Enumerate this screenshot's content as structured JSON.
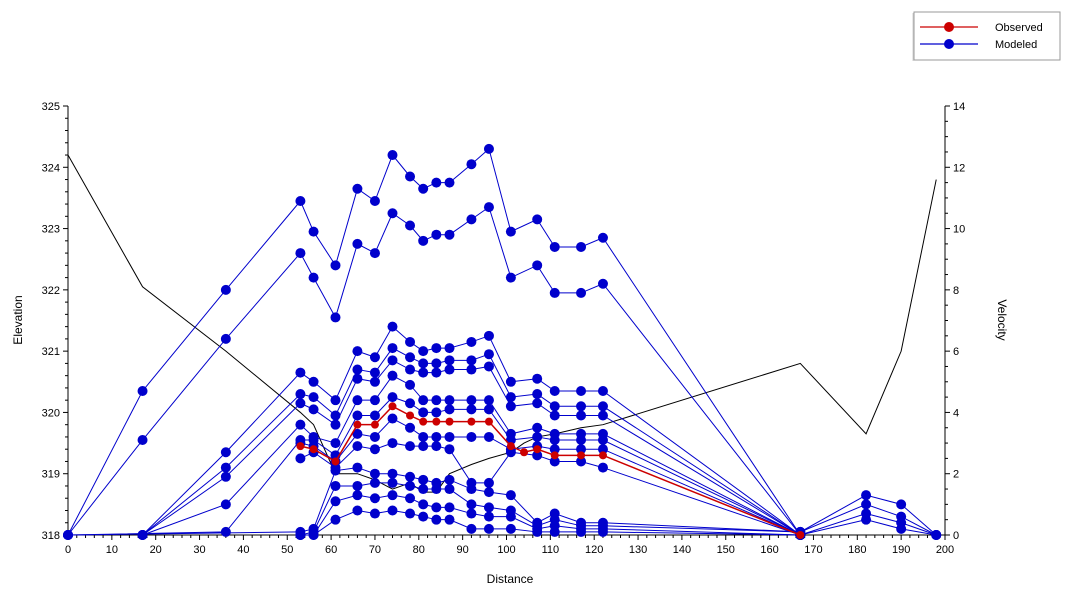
{
  "chart_data": {
    "type": "line",
    "xlabel": "Distance",
    "ylabel": "Elevation",
    "y2label": "Velocity",
    "xlim": [
      0,
      200
    ],
    "ylim": [
      318,
      325
    ],
    "y2lim": [
      0,
      14
    ],
    "x_ticks": [
      0,
      10,
      20,
      30,
      40,
      50,
      60,
      70,
      80,
      90,
      100,
      110,
      120,
      130,
      140,
      150,
      160,
      170,
      180,
      190,
      200
    ],
    "y_ticks": [
      318,
      319,
      320,
      321,
      322,
      323,
      324,
      325
    ],
    "y2_ticks": [
      0,
      2,
      4,
      6,
      8,
      10,
      12,
      14
    ],
    "grid": false,
    "legend": {
      "position": "top-right",
      "entries": [
        {
          "label": "Observed",
          "color": "#cc0000"
        },
        {
          "label": "Modeled",
          "color": "#0000cc"
        }
      ]
    },
    "colors": {
      "observed": "#cc0000",
      "modeled": "#0000cc",
      "velocity": "#000000"
    },
    "velocity": {
      "x": [
        0,
        17,
        36,
        53,
        56,
        61,
        66,
        70,
        74,
        78,
        81,
        84,
        87,
        92,
        96,
        101,
        104,
        107,
        111,
        117,
        122,
        167,
        182,
        190,
        198
      ],
      "y": [
        12.4,
        8.1,
        6.0,
        4.0,
        3.6,
        2.0,
        2.0,
        1.8,
        1.5,
        1.7,
        1.4,
        1.4,
        2.0,
        2.3,
        2.5,
        2.7,
        3.0,
        3.2,
        3.3,
        3.5,
        3.6,
        5.6,
        3.3,
        6.0,
        11.6
      ]
    },
    "observed": {
      "x": [
        53,
        56,
        61,
        66,
        70,
        74,
        78,
        81,
        84,
        87,
        92,
        96,
        101,
        104,
        107,
        111,
        117,
        122,
        167
      ],
      "y": [
        319.45,
        319.4,
        319.2,
        319.8,
        319.8,
        320.1,
        319.95,
        319.85,
        319.85,
        319.85,
        319.85,
        319.85,
        319.45,
        319.35,
        319.4,
        319.3,
        319.3,
        319.3,
        318.0
      ]
    },
    "modeled": [
      {
        "x": [
          0,
          17,
          36,
          53,
          56,
          61,
          66,
          70,
          74,
          78,
          81,
          84,
          87,
          92,
          96,
          101,
          107,
          111,
          117,
          122,
          167
        ],
        "y": [
          318.0,
          320.35,
          322.0,
          323.45,
          322.95,
          322.4,
          323.65,
          323.45,
          324.2,
          323.85,
          323.65,
          323.75,
          323.75,
          324.05,
          324.3,
          322.95,
          323.15,
          322.7,
          322.7,
          322.85,
          318.0
        ]
      },
      {
        "x": [
          0,
          17,
          36,
          53,
          56,
          61,
          66,
          70,
          74,
          78,
          81,
          84,
          87,
          92,
          96,
          101,
          107,
          111,
          117,
          122,
          167
        ],
        "y": [
          318.0,
          319.55,
          321.2,
          322.6,
          322.2,
          321.55,
          322.75,
          322.6,
          323.25,
          323.05,
          322.8,
          322.9,
          322.9,
          323.15,
          323.35,
          322.2,
          322.4,
          321.95,
          321.95,
          322.1,
          318.0
        ]
      },
      {
        "x": [
          17,
          36,
          53,
          56,
          61,
          66,
          70,
          74,
          78,
          81,
          84,
          87,
          92,
          96,
          101,
          107,
          111,
          117,
          122,
          167
        ],
        "y": [
          318.0,
          319.35,
          320.65,
          320.5,
          320.2,
          321.0,
          320.9,
          321.4,
          321.15,
          321.0,
          321.05,
          321.05,
          321.15,
          321.25,
          320.5,
          320.55,
          320.35,
          320.35,
          320.35,
          318.0
        ]
      },
      {
        "x": [
          17,
          36,
          53,
          56,
          61,
          66,
          70,
          74,
          78,
          81,
          84,
          87,
          92,
          96,
          101,
          107,
          111,
          117,
          122,
          167
        ],
        "y": [
          318.0,
          319.1,
          320.3,
          320.25,
          319.95,
          320.7,
          320.65,
          321.05,
          320.9,
          320.8,
          320.8,
          320.85,
          320.85,
          320.95,
          320.25,
          320.3,
          320.1,
          320.1,
          320.1,
          318.0
        ]
      },
      {
        "x": [
          17,
          36,
          53,
          56,
          61,
          66,
          70,
          74,
          78,
          81,
          84,
          87,
          92,
          96,
          101,
          107,
          111,
          117,
          122,
          167
        ],
        "y": [
          318.0,
          318.95,
          320.15,
          320.05,
          319.8,
          320.55,
          320.5,
          320.85,
          320.7,
          320.65,
          320.65,
          320.7,
          320.7,
          320.75,
          320.1,
          320.15,
          319.95,
          319.95,
          319.95,
          318.0
        ]
      },
      {
        "x": [
          17,
          36,
          53,
          56,
          61,
          66,
          70,
          74,
          78,
          81,
          84,
          87,
          92,
          96,
          101,
          107,
          111,
          117,
          122,
          167
        ],
        "y": [
          318.0,
          318.5,
          319.8,
          319.6,
          319.5,
          320.2,
          320.2,
          320.6,
          320.45,
          320.2,
          320.2,
          320.2,
          320.2,
          320.2,
          319.65,
          319.75,
          319.65,
          319.65,
          319.65,
          318.0
        ]
      },
      {
        "x": [
          0,
          36,
          53,
          56,
          61,
          66,
          70,
          74,
          78,
          81,
          84,
          87,
          92,
          96,
          101,
          107,
          111,
          117,
          122,
          167
        ],
        "y": [
          318.0,
          318.05,
          319.55,
          319.55,
          319.3,
          319.95,
          319.95,
          320.25,
          320.15,
          320.0,
          320.0,
          320.05,
          320.05,
          320.05,
          319.55,
          319.6,
          319.55,
          319.55,
          319.55,
          318.0
        ]
      },
      {
        "x": [
          53,
          56,
          61,
          66,
          70,
          74,
          78,
          81,
          84,
          87,
          92,
          96,
          101,
          107,
          111,
          117,
          122,
          167
        ],
        "y": [
          319.5,
          319.45,
          319.2,
          319.65,
          319.6,
          319.9,
          319.75,
          319.6,
          319.6,
          319.6,
          319.6,
          319.6,
          319.4,
          319.45,
          319.4,
          319.4,
          319.4,
          318.0
        ]
      },
      {
        "x": [
          53,
          56,
          61,
          66,
          70,
          74,
          78,
          81,
          84,
          87,
          92,
          96,
          101,
          107,
          111,
          117,
          122,
          167
        ],
        "y": [
          319.25,
          319.35,
          319.1,
          319.45,
          319.4,
          319.5,
          319.45,
          319.45,
          319.45,
          319.4,
          318.85,
          318.85,
          319.35,
          319.3,
          319.2,
          319.2,
          319.1,
          318.0
        ]
      },
      {
        "x": [
          0,
          53,
          56,
          61,
          66,
          70,
          74,
          78,
          81,
          84,
          87,
          92,
          96,
          101,
          107,
          111,
          117,
          122,
          167,
          182,
          190,
          198
        ],
        "y": [
          318.0,
          318.05,
          318.1,
          319.05,
          319.1,
          319.0,
          319.0,
          318.95,
          318.9,
          318.85,
          318.9,
          318.75,
          318.7,
          318.65,
          318.2,
          318.35,
          318.2,
          318.2,
          318.05,
          318.65,
          318.5,
          318.0
        ]
      },
      {
        "x": [
          53,
          56,
          61,
          66,
          70,
          74,
          78,
          81,
          84,
          87,
          92,
          96,
          101,
          107,
          111,
          117,
          122,
          167,
          182,
          190,
          198
        ],
        "y": [
          318.0,
          318.05,
          318.8,
          318.8,
          318.85,
          318.85,
          318.8,
          318.75,
          318.75,
          318.75,
          318.5,
          318.45,
          318.4,
          318.15,
          318.25,
          318.15,
          318.15,
          318.05,
          318.5,
          318.3,
          318.0
        ]
      },
      {
        "x": [
          53,
          56,
          61,
          66,
          70,
          74,
          78,
          81,
          84,
          87,
          92,
          96,
          101,
          107,
          111,
          117,
          122,
          167,
          182,
          190,
          198
        ],
        "y": [
          318.0,
          318.0,
          318.55,
          318.65,
          318.6,
          318.65,
          318.6,
          318.5,
          318.45,
          318.45,
          318.35,
          318.3,
          318.3,
          318.1,
          318.15,
          318.1,
          318.1,
          318.0,
          318.35,
          318.2,
          318.0
        ]
      },
      {
        "x": [
          53,
          56,
          61,
          66,
          70,
          74,
          78,
          81,
          84,
          87,
          92,
          96,
          101,
          107,
          111,
          117,
          122,
          167,
          182,
          190,
          198
        ],
        "y": [
          318.0,
          318.0,
          318.25,
          318.4,
          318.35,
          318.4,
          318.35,
          318.3,
          318.25,
          318.25,
          318.1,
          318.1,
          318.1,
          318.05,
          318.05,
          318.05,
          318.05,
          318.0,
          318.25,
          318.1,
          318.0
        ]
      }
    ]
  }
}
